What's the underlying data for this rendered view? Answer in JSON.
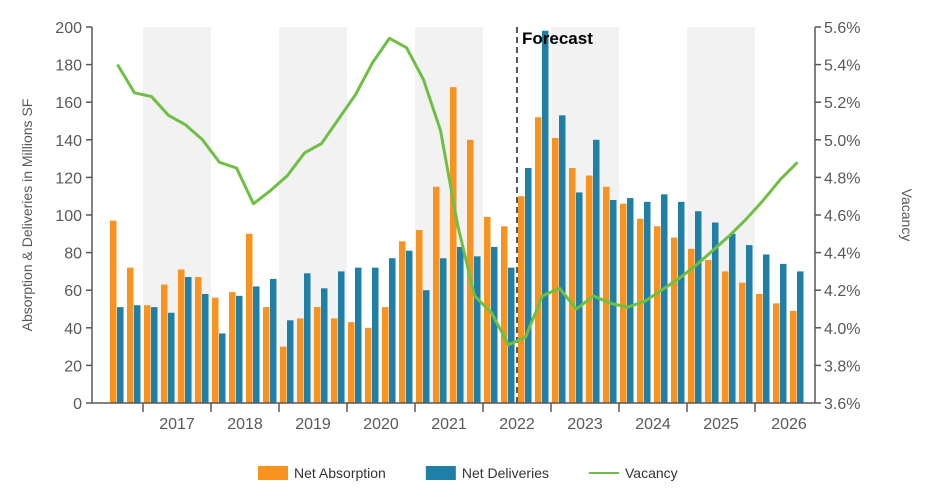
{
  "chart_data": {
    "type": "bar-line",
    "y_label": "Absorption & Deliveries in Millions SF",
    "y2_label": "Vacancy",
    "annotation": "Forecast",
    "categories": [
      null,
      null,
      null,
      "2017",
      null,
      null,
      null,
      "2018",
      null,
      null,
      null,
      "2019",
      null,
      null,
      null,
      "2020",
      null,
      null,
      null,
      "2021",
      null,
      null,
      null,
      "2022",
      null,
      null,
      null,
      "2023",
      null,
      null,
      null,
      "2024",
      null,
      null,
      null,
      "2025",
      null,
      null,
      null,
      "2026",
      null
    ],
    "ylim": [
      0,
      200
    ],
    "yticks": [
      0,
      20,
      40,
      60,
      80,
      100,
      120,
      140,
      160,
      180,
      200
    ],
    "y2lim": [
      3.6,
      5.6
    ],
    "y2ticks": [
      {
        "value": 3.6,
        "label": "3.6%"
      },
      {
        "value": 3.8,
        "label": "3.8%"
      },
      {
        "value": 4.0,
        "label": "4.0%"
      },
      {
        "value": 4.2,
        "label": "4.2%"
      },
      {
        "value": 4.4,
        "label": "4.4%"
      },
      {
        "value": 4.6,
        "label": "4.6%"
      },
      {
        "value": 4.8,
        "label": "4.8%"
      },
      {
        "value": 5.0,
        "label": "5.0%"
      },
      {
        "value": 5.2,
        "label": "5.2%"
      },
      {
        "value": 5.4,
        "label": "5.4%"
      },
      {
        "value": 5.6,
        "label": "5.6%"
      }
    ],
    "series": [
      {
        "name": "Net Absorption",
        "color": "#f7931e",
        "kind": "bar",
        "values": [
          97,
          72,
          52,
          63,
          71,
          67,
          56,
          59,
          90,
          51,
          30,
          45,
          51,
          45,
          43,
          40,
          51,
          86,
          92,
          115,
          168,
          140,
          99,
          94,
          110,
          152,
          141,
          125,
          121,
          115,
          106,
          98,
          94,
          88,
          82,
          76,
          70,
          64,
          58,
          53,
          49
        ]
      },
      {
        "name": "Net Deliveries",
        "color": "#1f7fa6",
        "kind": "bar",
        "values": [
          51,
          52,
          51,
          48,
          67,
          58,
          37,
          57,
          62,
          66,
          44,
          69,
          61,
          70,
          72,
          72,
          77,
          81,
          60,
          77,
          83,
          78,
          83,
          72,
          125,
          198,
          153,
          112,
          140,
          108,
          109,
          107,
          111,
          107,
          102,
          96,
          90,
          84,
          79,
          74,
          70
        ]
      },
      {
        "name": "Vacancy",
        "color": "#6fbf44",
        "kind": "line",
        "axis": "y2",
        "values": [
          5.4,
          5.25,
          5.23,
          5.13,
          5.08,
          5.0,
          4.88,
          4.85,
          4.66,
          4.73,
          4.81,
          4.93,
          4.98,
          5.11,
          5.24,
          5.41,
          5.54,
          5.49,
          5.32,
          5.05,
          4.55,
          4.17,
          4.08,
          3.91,
          3.95,
          4.17,
          4.21,
          4.1,
          4.17,
          4.13,
          4.11,
          4.14,
          4.2,
          4.26,
          4.33,
          4.41,
          4.49,
          4.58,
          4.68,
          4.79,
          4.88
        ]
      }
    ]
  }
}
